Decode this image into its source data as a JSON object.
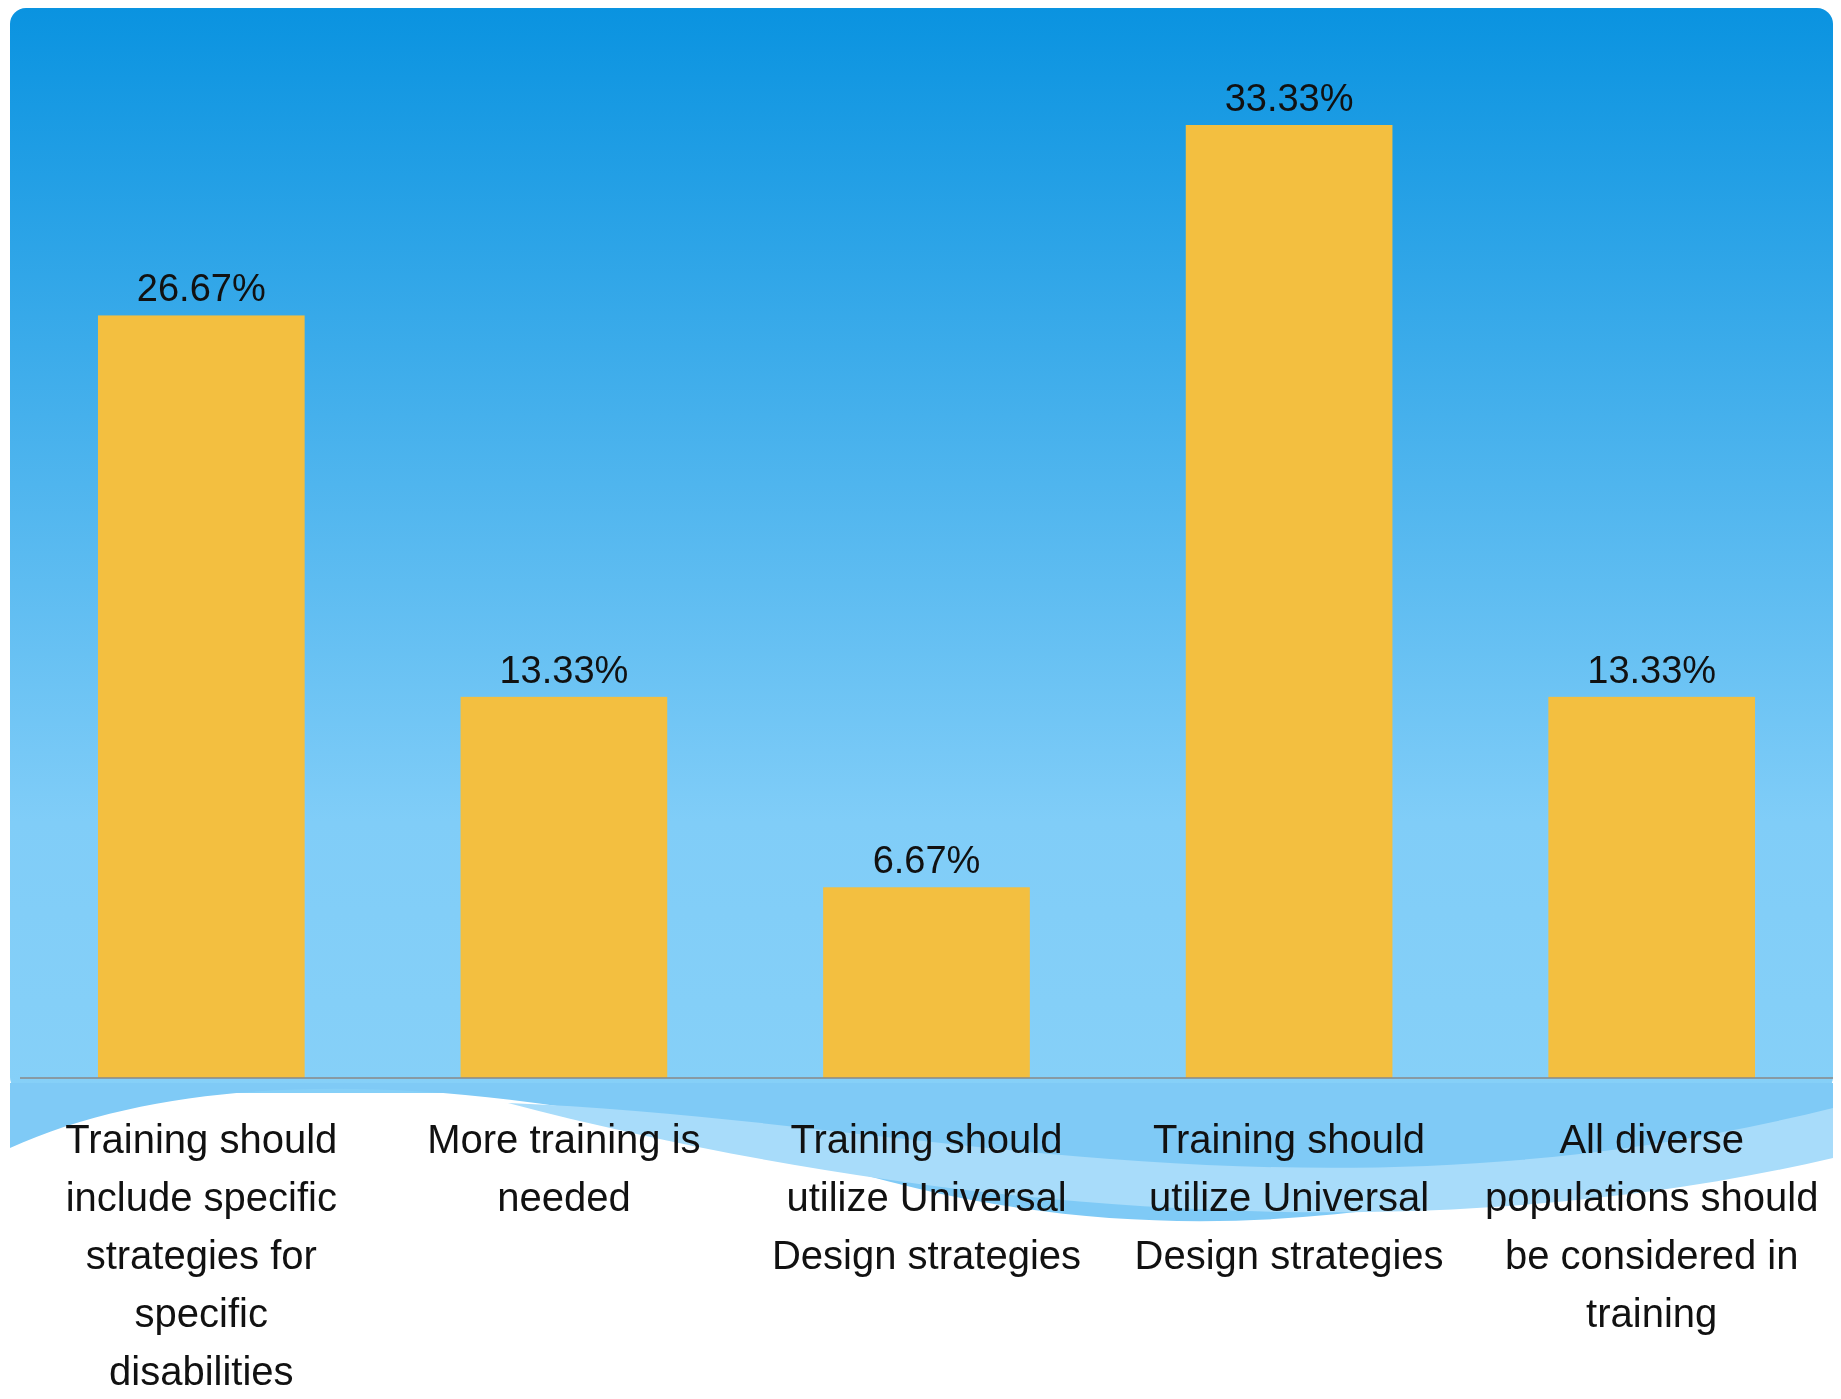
{
  "chart_data": {
    "type": "bar",
    "categories": [
      "Training should include specific strategies for specific disabilities",
      "More training is needed",
      "Training should utilize Universal Design strategies",
      "Training should utilize Universal Design strategies",
      "All diverse populations should be considered in training"
    ],
    "values": [
      26.67,
      13.33,
      6.67,
      33.33,
      13.33
    ],
    "value_labels": [
      "26.67%",
      "13.33%",
      "6.67%",
      "33.33%",
      "13.33%"
    ],
    "color": "#f3bf40"
  }
}
